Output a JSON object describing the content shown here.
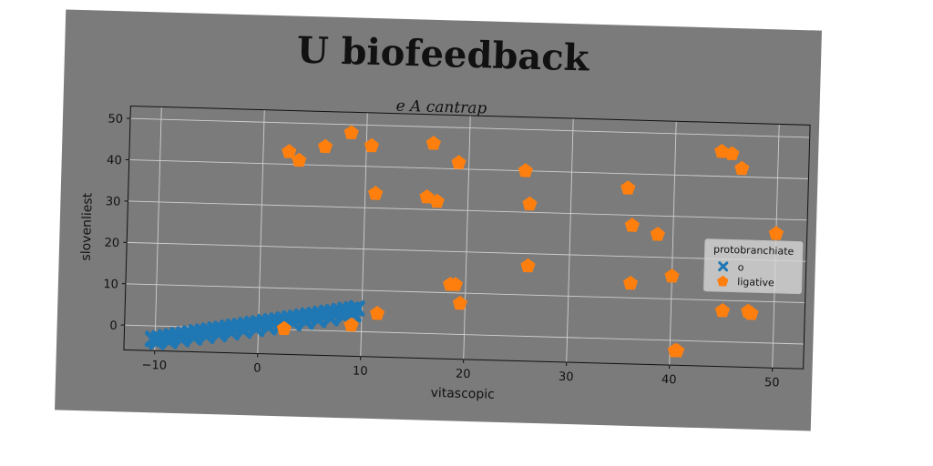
{
  "chart_data": {
    "type": "scatter",
    "title": "U biofeedback",
    "subtitle": "e A cantrap",
    "xlabel": "vitascopic",
    "ylabel": "slovenliest",
    "xlim": [
      -13,
      53
    ],
    "ylim": [
      -6,
      53
    ],
    "xticks": [
      -10,
      0,
      10,
      20,
      30,
      40,
      50
    ],
    "yticks": [
      0,
      10,
      20,
      30,
      40,
      50
    ],
    "grid": true,
    "legend": {
      "title": "protobranchiate",
      "position": "right"
    },
    "series": [
      {
        "name": "o",
        "marker": "x",
        "color": "#1f77b4",
        "points": [
          [
            -10.2,
            -3.2
          ],
          [
            -9.6,
            -3.0
          ],
          [
            -9.0,
            -2.7
          ],
          [
            -8.4,
            -2.4
          ],
          [
            -7.8,
            -2.1
          ],
          [
            -7.2,
            -1.9
          ],
          [
            -6.6,
            -1.6
          ],
          [
            -6.0,
            -1.3
          ],
          [
            -5.4,
            -1.1
          ],
          [
            -4.8,
            -0.8
          ],
          [
            -4.2,
            -0.5
          ],
          [
            -3.6,
            -0.3
          ],
          [
            -3.0,
            0.0
          ],
          [
            -2.4,
            0.3
          ],
          [
            -1.8,
            0.5
          ],
          [
            -1.2,
            0.8
          ],
          [
            -0.6,
            1.1
          ],
          [
            0.0,
            1.3
          ],
          [
            0.6,
            1.6
          ],
          [
            1.2,
            1.9
          ],
          [
            1.8,
            2.1
          ],
          [
            2.4,
            2.4
          ],
          [
            3.0,
            2.7
          ],
          [
            3.6,
            2.9
          ],
          [
            4.2,
            3.2
          ],
          [
            4.8,
            3.5
          ],
          [
            5.4,
            3.7
          ],
          [
            6.0,
            4.0
          ],
          [
            6.6,
            4.3
          ],
          [
            7.2,
            4.5
          ],
          [
            7.8,
            4.8
          ],
          [
            8.4,
            5.1
          ],
          [
            9.0,
            5.3
          ],
          [
            9.5,
            5.6
          ],
          [
            -9.8,
            -3.8
          ],
          [
            -8.6,
            -3.5
          ],
          [
            -7.4,
            -3.0
          ],
          [
            -6.2,
            -2.5
          ],
          [
            -5.0,
            -2.0
          ],
          [
            -3.8,
            -1.5
          ],
          [
            -2.6,
            -1.0
          ],
          [
            -1.4,
            -0.5
          ],
          [
            -0.2,
            0.0
          ],
          [
            1.0,
            0.5
          ],
          [
            2.2,
            1.0
          ],
          [
            3.4,
            1.6
          ],
          [
            4.6,
            2.1
          ],
          [
            5.8,
            2.6
          ],
          [
            7.0,
            3.1
          ],
          [
            8.2,
            3.6
          ],
          [
            9.2,
            4.2
          ]
        ]
      },
      {
        "name": "ligative",
        "marker": "pentagon",
        "color": "#ff7f0e",
        "points": [
          [
            2.5,
            43.0
          ],
          [
            3.5,
            41.0
          ],
          [
            6.0,
            44.5
          ],
          [
            8.5,
            48.0
          ],
          [
            10.5,
            45.0
          ],
          [
            11.0,
            33.5
          ],
          [
            16.0,
            33.0
          ],
          [
            17.0,
            32.0
          ],
          [
            16.5,
            46.0
          ],
          [
            19.0,
            41.5
          ],
          [
            18.5,
            12.0
          ],
          [
            19.0,
            12.0
          ],
          [
            19.5,
            7.5
          ],
          [
            25.5,
            40.0
          ],
          [
            26.0,
            32.0
          ],
          [
            26.0,
            17.0
          ],
          [
            35.5,
            36.5
          ],
          [
            36.0,
            27.5
          ],
          [
            38.5,
            25.5
          ],
          [
            36.0,
            13.5
          ],
          [
            40.0,
            15.5
          ],
          [
            40.5,
            -2.5
          ],
          [
            40.7,
            -2.5
          ],
          [
            44.5,
            46.0
          ],
          [
            45.5,
            45.5
          ],
          [
            46.5,
            42.0
          ],
          [
            45.0,
            7.5
          ],
          [
            47.5,
            7.5
          ],
          [
            47.8,
            7.0
          ],
          [
            50.0,
            26.5
          ],
          [
            2.5,
            0.2
          ],
          [
            9.0,
            1.5
          ],
          [
            11.5,
            4.5
          ]
        ]
      }
    ]
  }
}
